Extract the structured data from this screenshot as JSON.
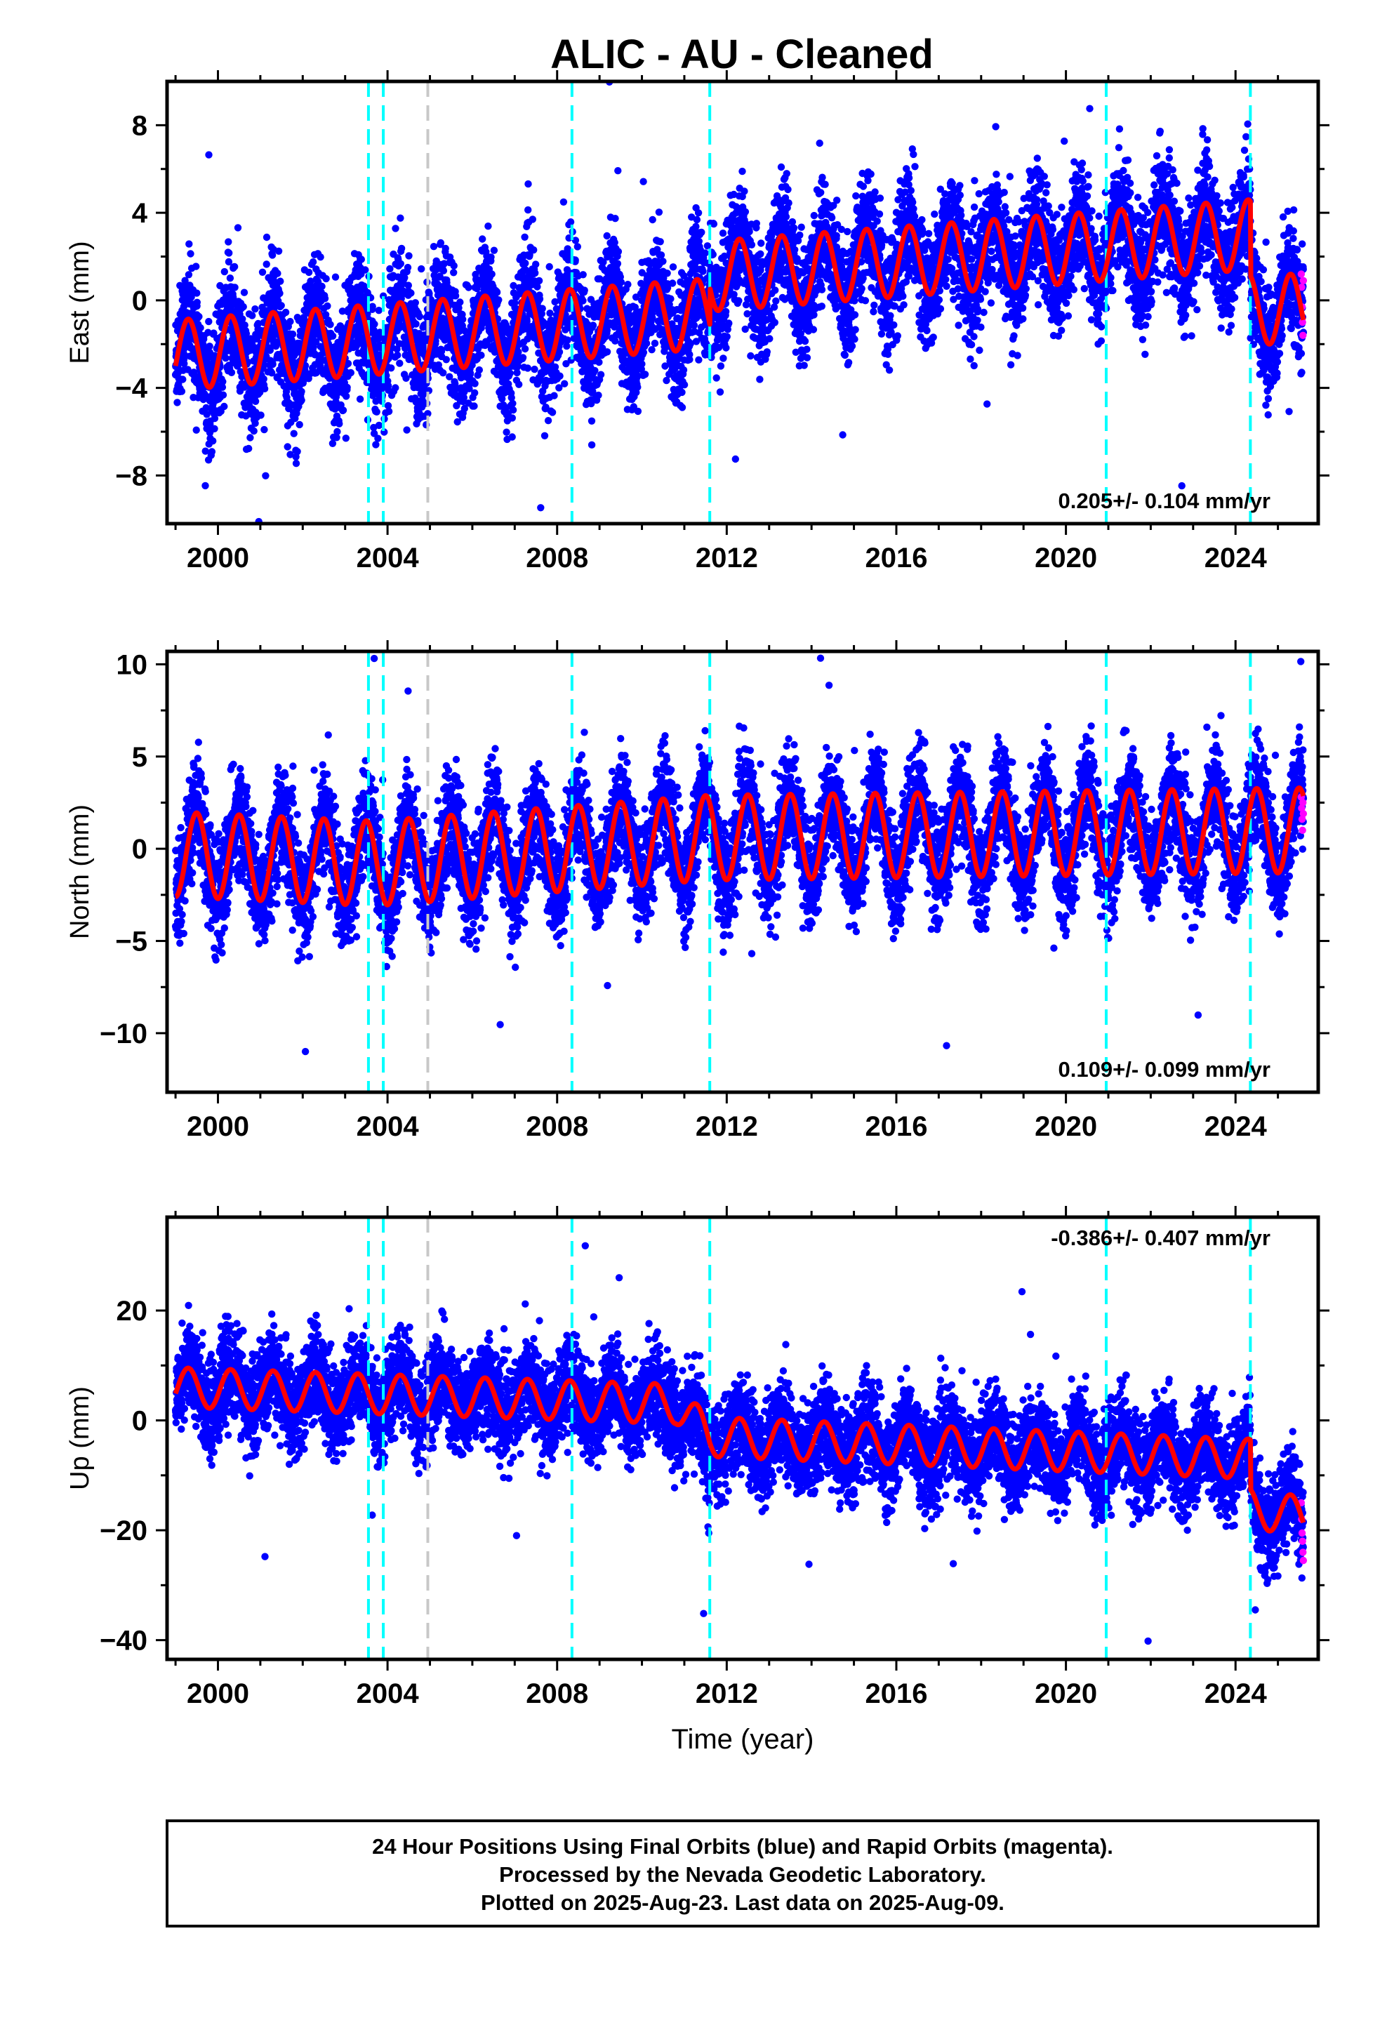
{
  "figure": {
    "title": "ALIC  - AU - Cleaned",
    "footer": [
      "24 Hour Positions Using Final Orbits (blue) and Rapid Orbits (magenta).",
      "Processed by the Nevada Geodetic Laboratory.",
      "Plotted on 2025-Aug-23. Last data on 2025-Aug-09."
    ]
  },
  "colors": {
    "final_orbits": "#0000ff",
    "rapid_orbits": "#ff00ff",
    "model_fit": "#ff0000",
    "equipment_change": "#00ffff",
    "other_event": "#c8c8c8"
  },
  "chart_data": [
    {
      "type": "scatter",
      "id": "east",
      "ylabel": "East (mm)",
      "xlabel": "",
      "xlim": [
        1998.8,
        2025.95
      ],
      "ylim": [
        -10.2,
        10.0
      ],
      "xticks": [
        2000,
        2004,
        2008,
        2012,
        2016,
        2020,
        2024
      ],
      "yticks": [
        -8,
        -4,
        0,
        4,
        8
      ],
      "rate_label": "0.205+/- 0.104 mm/yr",
      "rate_position": "bottom-right",
      "grid": false,
      "trend_points": [
        [
          1999.0,
          -2.5
        ],
        [
          2011.6,
          -0.6
        ],
        [
          2011.6,
          1.1
        ],
        [
          2024.35,
          3.0
        ],
        [
          2024.35,
          -0.4
        ],
        [
          2025.6,
          -0.4
        ]
      ],
      "annual_amplitude": 1.6,
      "annual_phase_year": 1999.05,
      "noise_std": 1.3,
      "rapid_points": [
        [
          2025.55,
          1.2
        ],
        [
          2025.56,
          0.6
        ],
        [
          2025.57,
          -0.3
        ],
        [
          2025.58,
          -1.0
        ],
        [
          2025.59,
          -1.6
        ],
        [
          2025.6,
          0.9
        ]
      ]
    },
    {
      "type": "scatter",
      "id": "north",
      "ylabel": "North (mm)",
      "xlabel": "",
      "xlim": [
        1998.8,
        2025.95
      ],
      "ylim": [
        -13.2,
        10.7
      ],
      "xticks": [
        2000,
        2004,
        2008,
        2012,
        2016,
        2020,
        2024
      ],
      "yticks": [
        -10,
        -5,
        0,
        5,
        10
      ],
      "rate_label": "0.109+/- 0.099 mm/yr",
      "rate_position": "bottom-right",
      "grid": false,
      "trend_points": [
        [
          1999.0,
          -0.3
        ],
        [
          2003.7,
          -0.8
        ],
        [
          2011.6,
          0.6
        ],
        [
          2025.6,
          1.0
        ]
      ],
      "annual_amplitude": 2.3,
      "annual_phase_year": 1999.25,
      "noise_std": 1.4,
      "rapid_points": [
        [
          2025.55,
          2.8
        ],
        [
          2025.56,
          2.2
        ],
        [
          2025.57,
          1.6
        ],
        [
          2025.58,
          1.0
        ],
        [
          2025.59,
          2.5
        ],
        [
          2025.6,
          1.9
        ]
      ]
    },
    {
      "type": "scatter",
      "id": "up",
      "ylabel": "Up (mm)",
      "xlabel": "Time (year)",
      "xlim": [
        1998.8,
        2025.95
      ],
      "ylim": [
        -43.5,
        37.0
      ],
      "xticks": [
        2000,
        2004,
        2008,
        2012,
        2016,
        2020,
        2024
      ],
      "yticks": [
        -40,
        -20,
        0,
        20
      ],
      "rate_label": "-0.386+/- 0.407 mm/yr",
      "rate_position": "top-right",
      "grid": false,
      "trend_points": [
        [
          1999.0,
          6.0
        ],
        [
          2010.8,
          3.0
        ],
        [
          2011.6,
          -3.0
        ],
        [
          2024.35,
          -7.0
        ],
        [
          2024.35,
          -16.0
        ],
        [
          2025.6,
          -17.5
        ]
      ],
      "annual_amplitude": 3.6,
      "annual_phase_year": 1999.05,
      "noise_std": 4.2,
      "rapid_points": [
        [
          2025.55,
          -15.0
        ],
        [
          2025.56,
          -18.0
        ],
        [
          2025.57,
          -20.5
        ],
        [
          2025.58,
          -22.0
        ],
        [
          2025.59,
          -24.0
        ],
        [
          2025.6,
          -25.5
        ]
      ]
    }
  ],
  "event_lines": {
    "equipment_change": [
      2003.55,
      2003.9,
      2008.35,
      2011.6,
      2020.95,
      2024.35
    ],
    "other_event": [
      2004.95
    ]
  }
}
